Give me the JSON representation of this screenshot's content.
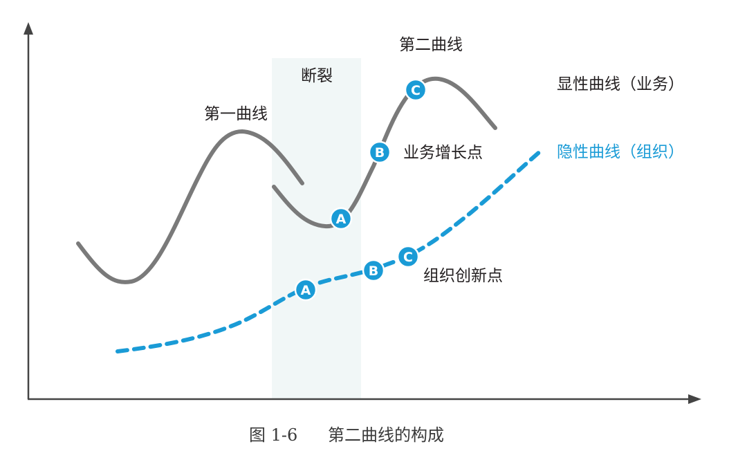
{
  "labels": {
    "first_curve": "第一曲线",
    "break": "断裂",
    "second_curve": "第二曲线",
    "explicit_curve": "显性曲线（业务）",
    "implicit_curve": "隐性曲线（组织）",
    "business_growth_point": "业务增长点",
    "org_innovation_point": "组织创新点"
  },
  "markers": {
    "business": [
      "A",
      "B",
      "C"
    ],
    "organization": [
      "A",
      "B",
      "C"
    ]
  },
  "caption": {
    "figure_number": "图 1-6",
    "title": "第二曲线的构成"
  },
  "colors": {
    "solid_curve": "#7a7a7a",
    "dashed_curve": "#1a9bd6",
    "marker_fill": "#1a9bd6",
    "break_band": "#f1f7f7",
    "axis": "#444444"
  }
}
